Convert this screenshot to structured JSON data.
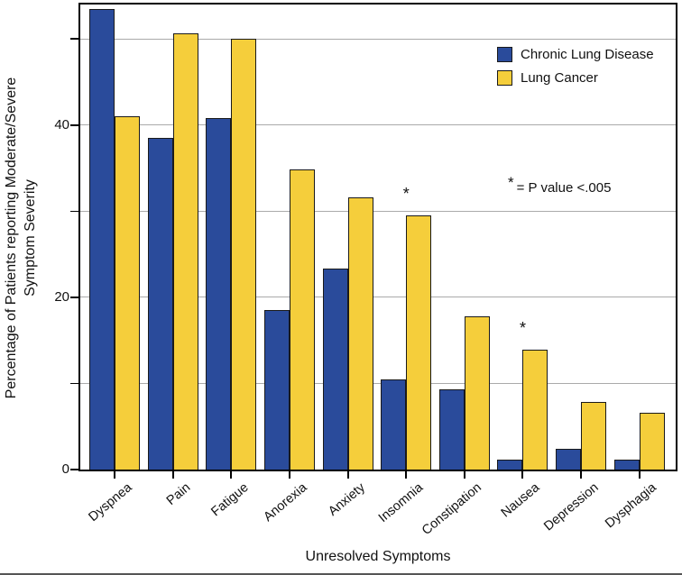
{
  "figure": {
    "legend_items": [
      {
        "label": "Chronic Lung Disease"
      },
      {
        "label": "Lung Cancer"
      }
    ],
    "annotation": {
      "symbol": "*",
      "text": "= P value <.005"
    }
  },
  "chart_data": {
    "type": "bar",
    "title": "",
    "xlabel": "Unresolved Symptoms",
    "ylabel_lines": [
      "Percentage of Patients reporting Moderate/Severe",
      "Symptom Severity"
    ],
    "categories": [
      "Dyspnea",
      "Pain",
      "Fatigue",
      "Anorexia",
      "Anxiety",
      "Insomnia",
      "Constipation",
      "Nausea",
      "Depression",
      "Dysphagia"
    ],
    "series": [
      {
        "name": "Chronic Lung Disease",
        "key": "chronic-lung-disease",
        "color": "#2a4b9b",
        "values": [
          53.5,
          38.5,
          40.8,
          18.5,
          23.3,
          10.5,
          9.3,
          1.2,
          2.4,
          1.2
        ]
      },
      {
        "name": "Lung Cancer",
        "key": "lung-cancer",
        "color": "#f5ce3b",
        "values": [
          41,
          50.7,
          50,
          34.8,
          31.6,
          29.5,
          17.8,
          13.9,
          7.9,
          6.6
        ]
      }
    ],
    "significant_categories": [
      "Insomnia",
      "Nausea"
    ],
    "significance_note": "* = P value <.005",
    "ylim": [
      0,
      54
    ],
    "y_ticks_labeled": [
      0,
      20,
      40
    ],
    "y_ticks_minor": [
      10,
      30,
      50
    ],
    "gridlines": [
      10,
      20,
      30,
      40,
      50
    ],
    "grid": "horizontal",
    "legend_position": "upper-right-inside",
    "bar_edge_color": "#1a1a1a",
    "gridline_color": "#aaaaaa",
    "axis_color": "#000000"
  }
}
